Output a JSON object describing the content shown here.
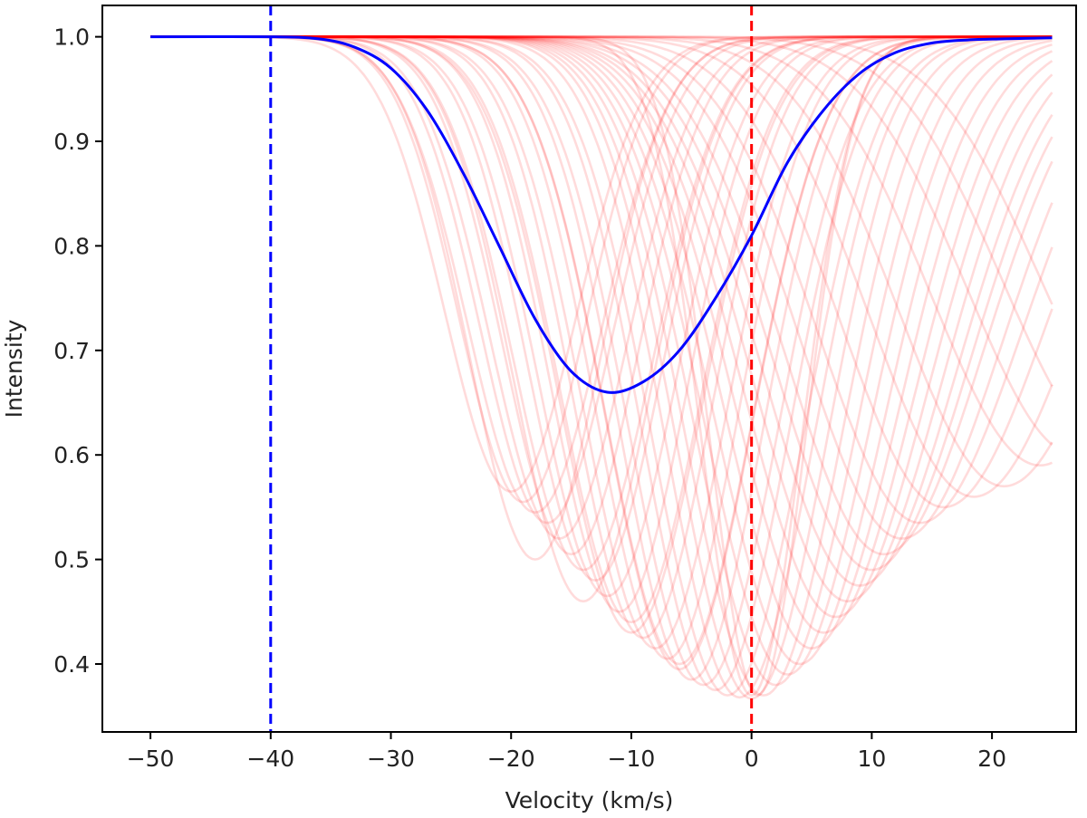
{
  "chart_data": {
    "type": "line",
    "title": "",
    "xlabel": "Velocity (km/s)",
    "ylabel": "Intensity",
    "xlim": [
      -54,
      27
    ],
    "ylim": [
      0.335,
      1.03
    ],
    "x_ticks": [
      -50,
      -40,
      -30,
      -20,
      -10,
      0,
      10,
      20
    ],
    "y_ticks": [
      0.4,
      0.5,
      0.6,
      0.7,
      0.8,
      0.9,
      1.0
    ],
    "x_tick_labels": [
      "−50",
      "−40",
      "−30",
      "−20",
      "−10",
      "0",
      "10",
      "20"
    ],
    "y_tick_labels": [
      "0.4",
      "0.5",
      "0.6",
      "0.7",
      "0.8",
      "0.9",
      "1.0"
    ],
    "grid": false,
    "legend": "none",
    "colors": {
      "faint_profiles": "#ff0000",
      "mean_profile": "#0000ff",
      "blue_line": "#0000ff",
      "red_line": "#ff0000"
    },
    "vertical_lines": [
      {
        "x": -40,
        "color": "#0000ff",
        "style": "dashed"
      },
      {
        "x": 0,
        "color": "#ff0000",
        "style": "dashed"
      }
    ],
    "mean_profile": {
      "x": [
        -50,
        -40,
        -36,
        -33,
        -30,
        -27,
        -24,
        -21,
        -18,
        -15,
        -12,
        -9,
        -6,
        -3,
        0,
        3,
        6,
        9,
        12,
        15,
        18,
        21,
        25
      ],
      "y": [
        1.0,
        1.0,
        0.998,
        0.99,
        0.97,
        0.93,
        0.87,
        0.8,
        0.73,
        0.68,
        0.66,
        0.67,
        0.7,
        0.75,
        0.81,
        0.88,
        0.93,
        0.965,
        0.985,
        0.994,
        0.997,
        0.998,
        0.999
      ]
    },
    "faint_profiles": {
      "x_start": -50,
      "x_end": 25,
      "continuum": 1.0,
      "profiles": [
        {
          "center": -20.0,
          "depth": 0.435,
          "width": 5.5
        },
        {
          "center": -19.0,
          "depth": 0.445,
          "width": 5.3
        },
        {
          "center": -18.0,
          "depth": 0.455,
          "width": 5.6
        },
        {
          "center": -17.0,
          "depth": 0.465,
          "width": 5.5
        },
        {
          "center": -16.0,
          "depth": 0.48,
          "width": 5.7
        },
        {
          "center": -15.0,
          "depth": 0.495,
          "width": 5.6
        },
        {
          "center": -14.0,
          "depth": 0.51,
          "width": 5.8
        },
        {
          "center": -13.0,
          "depth": 0.52,
          "width": 5.6
        },
        {
          "center": -12.0,
          "depth": 0.535,
          "width": 5.8
        },
        {
          "center": -11.0,
          "depth": 0.55,
          "width": 5.7
        },
        {
          "center": -10.0,
          "depth": 0.56,
          "width": 5.9
        },
        {
          "center": -9.0,
          "depth": 0.575,
          "width": 5.8
        },
        {
          "center": -8.0,
          "depth": 0.585,
          "width": 6.0
        },
        {
          "center": -7.0,
          "depth": 0.595,
          "width": 5.9
        },
        {
          "center": -6.0,
          "depth": 0.605,
          "width": 6.1
        },
        {
          "center": -5.0,
          "depth": 0.615,
          "width": 6.0
        },
        {
          "center": -4.0,
          "depth": 0.62,
          "width": 6.2
        },
        {
          "center": -3.0,
          "depth": 0.625,
          "width": 6.1
        },
        {
          "center": -2.0,
          "depth": 0.63,
          "width": 6.3
        },
        {
          "center": -1.0,
          "depth": 0.632,
          "width": 6.2
        },
        {
          "center": 0.0,
          "depth": 0.633,
          "width": 6.3
        },
        {
          "center": 1.0,
          "depth": 0.63,
          "width": 6.5
        },
        {
          "center": 2.0,
          "depth": 0.62,
          "width": 6.7
        },
        {
          "center": 3.0,
          "depth": 0.61,
          "width": 6.9
        },
        {
          "center": 4.0,
          "depth": 0.6,
          "width": 7.1
        },
        {
          "center": 5.0,
          "depth": 0.585,
          "width": 7.3
        },
        {
          "center": 6.0,
          "depth": 0.57,
          "width": 7.5
        },
        {
          "center": 7.0,
          "depth": 0.555,
          "width": 7.7
        },
        {
          "center": 8.0,
          "depth": 0.54,
          "width": 7.9
        },
        {
          "center": 9.0,
          "depth": 0.525,
          "width": 8.1
        },
        {
          "center": 10.0,
          "depth": 0.51,
          "width": 8.2
        },
        {
          "center": 11.0,
          "depth": 0.495,
          "width": 8.3
        },
        {
          "center": 12.5,
          "depth": 0.48,
          "width": 8.4
        },
        {
          "center": 14.0,
          "depth": 0.465,
          "width": 8.5
        },
        {
          "center": 16.0,
          "depth": 0.45,
          "width": 8.6
        },
        {
          "center": 18.5,
          "depth": 0.44,
          "width": 8.7
        },
        {
          "center": 21.0,
          "depth": 0.43,
          "width": 8.8
        },
        {
          "center": 24.0,
          "depth": 0.41,
          "width": 9.0
        },
        {
          "center": 27.0,
          "depth": 0.4,
          "width": 9.0
        },
        {
          "center": 30.0,
          "depth": 0.39,
          "width": 9.0
        },
        {
          "center": 33.0,
          "depth": 0.38,
          "width": 9.0
        },
        {
          "center": -18.0,
          "depth": 0.5,
          "width": 5.5
        },
        {
          "center": -14.0,
          "depth": 0.54,
          "width": 5.8
        },
        {
          "center": -10.0,
          "depth": 0.57,
          "width": 6.0
        },
        {
          "center": -6.0,
          "depth": 0.6,
          "width": 6.1
        },
        {
          "center": 0.0,
          "depth": 0.63,
          "width": 4.2
        },
        {
          "center": 0.5,
          "depth": 0.63,
          "width": 4.0
        }
      ]
    }
  }
}
